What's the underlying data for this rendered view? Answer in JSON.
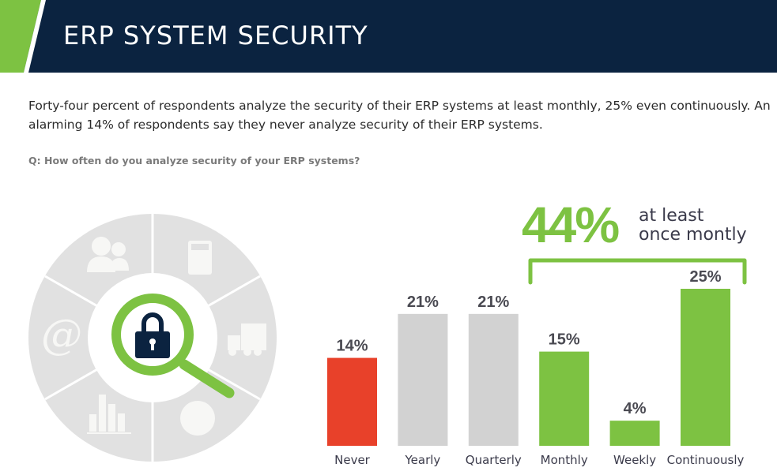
{
  "header": {
    "title": "ERP SYSTEM SECURITY"
  },
  "intro": "Forty-four percent of respondents analyze the security of their ERP systems at least monthly, 25% even continuously. An alarming 14% of respondents say they never analyze security of their ERP systems.",
  "question": "Q: How often do you analyze security of your ERP systems?",
  "highlight": {
    "value": "44%",
    "text_line1": "at least",
    "text_line2": "once montly"
  },
  "illustration": {
    "icons": [
      "users-icon",
      "calculator-icon",
      "truck-icon",
      "pie-chart-icon",
      "bar-chart-icon",
      "at-sign-icon",
      "magnifier-lock-icon"
    ]
  },
  "colors": {
    "navy": "#0b2340",
    "green": "#7dc242",
    "red": "#e8412a",
    "gray": "#d2d2d2"
  },
  "chart_data": {
    "type": "bar",
    "categories": [
      "Never",
      "Yearly",
      "Quarterly",
      "Monthly",
      "Weekly",
      "Continuously"
    ],
    "values": [
      14,
      21,
      21,
      15,
      4,
      25
    ],
    "data_labels": [
      "14%",
      "21%",
      "21%",
      "15%",
      "4%",
      "25%"
    ],
    "bar_colors": [
      "#e8412a",
      "#d2d2d2",
      "#d2d2d2",
      "#7dc242",
      "#7dc242",
      "#7dc242"
    ],
    "ylim": [
      0,
      25
    ],
    "grid": false,
    "bracket": {
      "from": "Monthly",
      "to": "Continuously",
      "label": "44%"
    }
  }
}
